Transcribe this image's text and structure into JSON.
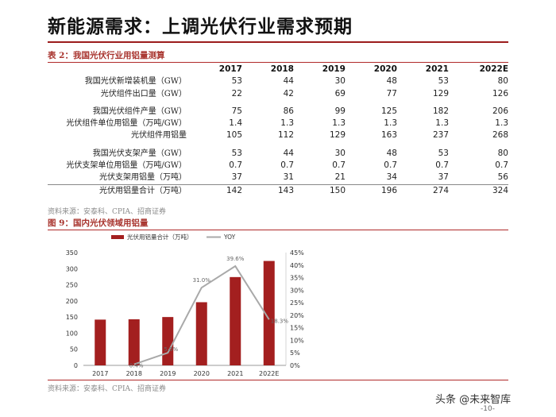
{
  "page_title": "新能源需求：上调光伏行业需求预期",
  "table": {
    "caption": "表 2：我国光伏行业用铝量测算",
    "columns": [
      "2017",
      "2018",
      "2019",
      "2020",
      "2021",
      "2022E"
    ],
    "rows": [
      {
        "label": "我国光伏新增装机量（GW）",
        "values": [
          "53",
          "44",
          "30",
          "48",
          "53",
          "80"
        ]
      },
      {
        "label": "光伏组件出口量（GW）",
        "values": [
          "22",
          "42",
          "69",
          "77",
          "129",
          "126"
        ]
      },
      {
        "label": "我国光伏组件产量（GW）",
        "values": [
          "75",
          "86",
          "99",
          "125",
          "182",
          "206"
        ]
      },
      {
        "label": "光伏组件单位用铝量（万吨/GW）",
        "values": [
          "1.4",
          "1.3",
          "1.3",
          "1.3",
          "1.3",
          "1.3"
        ]
      },
      {
        "label": "光伏组件用铝量",
        "values": [
          "105",
          "112",
          "129",
          "163",
          "237",
          "268"
        ]
      },
      {
        "label": "我国光伏支架产量（GW）",
        "values": [
          "53",
          "44",
          "30",
          "48",
          "53",
          "80"
        ]
      },
      {
        "label": "光伏支架单位用铝量（万吨/GW）",
        "values": [
          "0.7",
          "0.7",
          "0.7",
          "0.7",
          "0.7",
          "0.7"
        ]
      },
      {
        "label": "光伏支架用铝量（万吨）",
        "values": [
          "37",
          "31",
          "21",
          "34",
          "37",
          "56"
        ]
      },
      {
        "label": "光伏用铝量合计（万吨）",
        "values": [
          "142",
          "143",
          "150",
          "196",
          "274",
          "324"
        ]
      }
    ],
    "source": "资料来源：安泰科、CPIA、招商证券"
  },
  "figure": {
    "caption": "图 9：国内光伏领域用铝量",
    "source": "资料来源：安泰科、CPIA、招商证券"
  },
  "chart_data": {
    "type": "bar",
    "categories": [
      "2017",
      "2018",
      "2019",
      "2020",
      "2021",
      "2022E"
    ],
    "series": [
      {
        "name": "光伏用铝量合计（万吨）",
        "type": "bar",
        "axis": "left",
        "values": [
          142,
          143,
          150,
          196,
          274,
          324
        ],
        "color": "#a31f1f"
      },
      {
        "name": "YOY",
        "type": "line",
        "axis": "right",
        "values": [
          null,
          0.4,
          5.0,
          31.0,
          39.6,
          18.3
        ],
        "labels": [
          "",
          "0.4%",
          "5.0%",
          "31.0%",
          "39.6%",
          "18.3%"
        ],
        "color": "#a9a9a9"
      }
    ],
    "ylim_left": [
      0,
      350
    ],
    "yticks_left": [
      "0",
      "50",
      "100",
      "150",
      "200",
      "250",
      "300",
      "350"
    ],
    "ylim_right": [
      0,
      45
    ],
    "yticks_right": [
      "0%",
      "5%",
      "10%",
      "15%",
      "20%",
      "25%",
      "30%",
      "35%",
      "40%",
      "45%"
    ],
    "legend_position": "top",
    "grid": false
  },
  "watermark": "头条 @未来智库",
  "page_number": "-10-"
}
